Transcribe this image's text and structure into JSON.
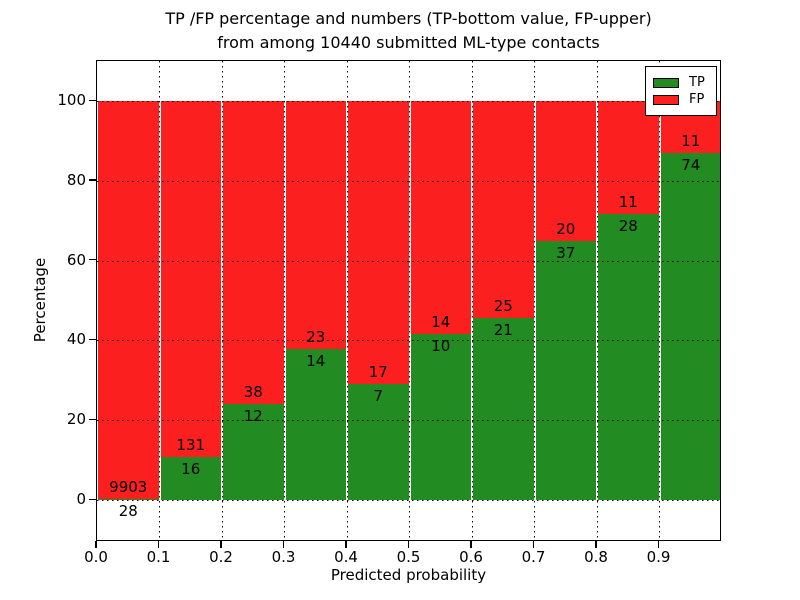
{
  "chart_data": {
    "type": "bar",
    "stacked": true,
    "title": "TP /FP percentage and numbers (TP-bottom value, FP-upper)",
    "subtitle": "from among 10440 submitted ML-type contacts",
    "xlabel": "Predicted probability",
    "ylabel": "Percentage",
    "total_submitted": 10440,
    "bin_starts": [
      0.0,
      0.1,
      0.2,
      0.3,
      0.4,
      0.5,
      0.6,
      0.7,
      0.8,
      0.9
    ],
    "x_ticks": [
      "0.0",
      "0.1",
      "0.2",
      "0.3",
      "0.4",
      "0.5",
      "0.6",
      "0.7",
      "0.8",
      "0.9"
    ],
    "y_ticks": [
      0,
      20,
      40,
      60,
      80,
      100
    ],
    "ylim": [
      -10.5,
      110.5
    ],
    "grid": true,
    "legend_position": "upper right",
    "series": [
      {
        "name": "TP",
        "color": "#228b22",
        "counts": [
          28,
          16,
          12,
          14,
          7,
          10,
          21,
          37,
          28,
          74
        ],
        "percentages": [
          0.28,
          10.88,
          24.0,
          37.84,
          29.17,
          41.67,
          45.65,
          64.91,
          71.79,
          87.06
        ]
      },
      {
        "name": "FP",
        "color": "#fb1f1f",
        "counts": [
          9903,
          131,
          38,
          23,
          17,
          14,
          25,
          20,
          11,
          11
        ],
        "percentages": [
          99.72,
          89.12,
          76.0,
          62.16,
          70.83,
          58.33,
          54.35,
          35.09,
          28.21,
          12.94
        ]
      }
    ],
    "label_note": "TP count below segment boundary, FP count above segment boundary"
  }
}
